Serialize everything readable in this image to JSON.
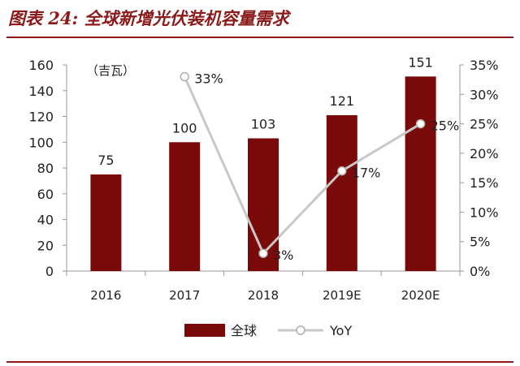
{
  "figure": {
    "title": "图表 24:  全球新增光伏装机容量需求"
  },
  "chart_data": {
    "type": "bar",
    "categories": [
      "2016",
      "2017",
      "2018",
      "2019E",
      "2020E"
    ],
    "unit_label": "（吉瓦）",
    "series": [
      {
        "name": "全球",
        "type": "bar",
        "axis": "left",
        "values": [
          75,
          100,
          103,
          121,
          151
        ],
        "labels": [
          "75",
          "100",
          "103",
          "121",
          "151"
        ],
        "color": "#7a0a0a"
      },
      {
        "name": "YoY",
        "type": "line",
        "axis": "right",
        "values": [
          null,
          33,
          3,
          17,
          25
        ],
        "labels": [
          "",
          "33%",
          "3%",
          "17%",
          "25%"
        ],
        "color": "#c8c8c8",
        "marker": "circle-open"
      }
    ],
    "y_left": {
      "min": 0,
      "max": 160,
      "ticks": [
        "0",
        "20",
        "40",
        "60",
        "80",
        "100",
        "120",
        "140",
        "160"
      ]
    },
    "y_right": {
      "min": 0,
      "max": 35,
      "ticks": [
        "0%",
        "5%",
        "10%",
        "15%",
        "20%",
        "25%",
        "30%",
        "35%"
      ]
    },
    "grid": false,
    "legend": {
      "position": "bottom",
      "items": [
        "全球",
        "YoY"
      ]
    }
  }
}
